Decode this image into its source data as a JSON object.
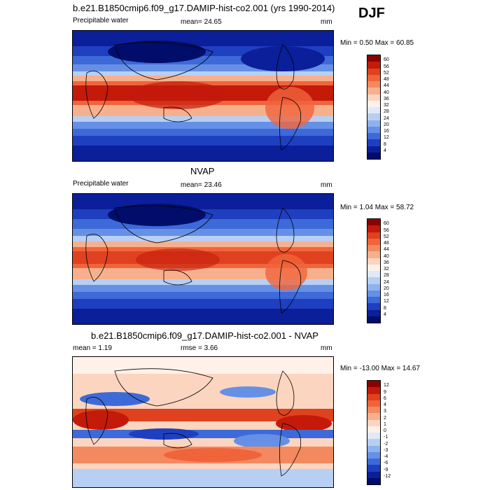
{
  "season": "DJF",
  "panels": [
    {
      "title": "b.e21.B1850cmip6.f09_g17.DAMIP-hist-co2.001 (yrs 1990-2014)",
      "left_label": "Precipitable water",
      "mean_label": "mean=  24.65",
      "units": "mm",
      "minmax": "Min =   0.50 Max =  60.85"
    },
    {
      "title": "NVAP",
      "left_label": "Precipitable water",
      "mean_label": "mean=  23.46",
      "units": "mm",
      "minmax": "Min =   1.04 Max =  58.72"
    },
    {
      "title": "b.e21.B1850cmip6.f09_g17.DAMIP-hist-co2.001 - NVAP",
      "left_label": "mean =   1.19",
      "mean_label": "rmse =   3.66",
      "units": "mm",
      "minmax": "Min = -13.00 Max =  14.67"
    }
  ],
  "colorbar_abs": {
    "levels": [
      "60",
      "56",
      "52",
      "48",
      "44",
      "40",
      "36",
      "32",
      "28",
      "24",
      "20",
      "16",
      "12",
      "8",
      "4"
    ],
    "colors": [
      "#8b0000",
      "#c41a0a",
      "#e0411e",
      "#f0643c",
      "#f38a5f",
      "#f7b08e",
      "#fbd5c0",
      "#fff1e8",
      "#dfe9fa",
      "#b8cff4",
      "#8fb1ee",
      "#6690e5",
      "#3d6ad8",
      "#1e3fc0",
      "#0b1f9a",
      "#000d6b"
    ]
  },
  "colorbar_diff": {
    "levels": [
      "12",
      "9",
      "6",
      "4",
      "3",
      "2",
      "1",
      "0",
      "-1",
      "-2",
      "-3",
      "-4",
      "-6",
      "-9",
      "-12"
    ],
    "colors": [
      "#8b0000",
      "#c41a0a",
      "#e0411e",
      "#f0643c",
      "#f38a5f",
      "#f7b08e",
      "#fbd5c0",
      "#fff1e8",
      "#dfe9fa",
      "#b8cff4",
      "#8fb1ee",
      "#6690e5",
      "#3d6ad8",
      "#1e3fc0",
      "#0b1f9a",
      "#000d6b"
    ]
  },
  "chart_data": [
    {
      "type": "heatmap",
      "title": "b.e21.B1850cmip6.f09_g17.DAMIP-hist-co2.001 (yrs 1990-2014)",
      "variable": "Precipitable water",
      "units": "mm",
      "mean": 24.65,
      "min": 0.5,
      "max": 60.85,
      "contour_levels": [
        4,
        8,
        12,
        16,
        20,
        24,
        28,
        32,
        36,
        40,
        44,
        48,
        52,
        56,
        60
      ]
    },
    {
      "type": "heatmap",
      "title": "NVAP",
      "variable": "Precipitable water",
      "units": "mm",
      "mean": 23.46,
      "min": 1.04,
      "max": 58.72,
      "contour_levels": [
        4,
        8,
        12,
        16,
        20,
        24,
        28,
        32,
        36,
        40,
        44,
        48,
        52,
        56,
        60
      ]
    },
    {
      "type": "heatmap",
      "title": "b.e21.B1850cmip6.f09_g17.DAMIP-hist-co2.001 - NVAP",
      "units": "mm",
      "mean": 1.19,
      "rmse": 3.66,
      "min": -13.0,
      "max": 14.67,
      "contour_levels": [
        -12,
        -9,
        -6,
        -4,
        -3,
        -2,
        -1,
        0,
        1,
        2,
        3,
        4,
        6,
        9,
        12
      ]
    }
  ]
}
